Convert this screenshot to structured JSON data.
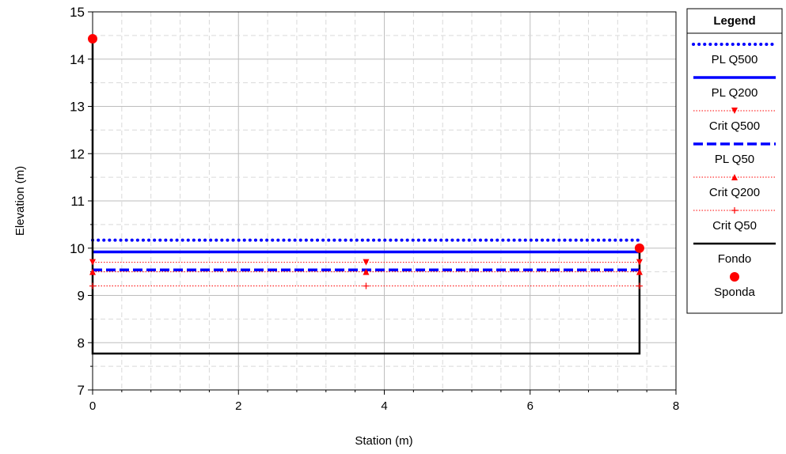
{
  "chart_data": {
    "type": "line",
    "xlabel": "Station (m)",
    "ylabel": "Elevation (m)",
    "xlim": [
      0,
      8
    ],
    "ylim": [
      7,
      15
    ],
    "x_ticks": [
      0,
      2,
      4,
      6,
      8
    ],
    "y_ticks": [
      7,
      8,
      9,
      10,
      11,
      12,
      13,
      14,
      15
    ],
    "grid": true,
    "legend_title": "Legend",
    "legend_position": "right",
    "series": [
      {
        "name": "PL Q500",
        "color": "#0000ff",
        "style": "dotted",
        "x": [
          0,
          7.5
        ],
        "y": [
          10.17,
          10.17
        ]
      },
      {
        "name": "PL Q200",
        "color": "#0000ff",
        "style": "solid",
        "x": [
          0,
          7.5
        ],
        "y": [
          9.92,
          9.92
        ]
      },
      {
        "name": "Crit Q500",
        "color": "#ff0000",
        "style": "dotted-thin",
        "marker": "triangle-down",
        "x": [
          0,
          3.75,
          7.5
        ],
        "y": [
          9.7,
          9.7,
          9.7
        ]
      },
      {
        "name": "PL Q50",
        "color": "#0000ff",
        "style": "dashed",
        "x": [
          0,
          7.5
        ],
        "y": [
          9.54,
          9.54
        ]
      },
      {
        "name": "Crit Q200",
        "color": "#ff0000",
        "style": "dotted-thin",
        "marker": "triangle-up",
        "x": [
          0,
          3.75,
          7.5
        ],
        "y": [
          9.5,
          9.5,
          9.5
        ]
      },
      {
        "name": "Crit Q50",
        "color": "#ff0000",
        "style": "dotted-thin",
        "marker": "plus",
        "x": [
          0,
          3.75,
          7.5
        ],
        "y": [
          9.2,
          9.2,
          9.2
        ]
      },
      {
        "name": "Fondo",
        "color": "#000000",
        "style": "solid",
        "x": [
          0,
          0,
          7.5,
          7.5
        ],
        "y": [
          14.43,
          7.77,
          7.77,
          10.0
        ]
      },
      {
        "name": "Sponda",
        "color": "#ff0000",
        "style": "none",
        "marker": "circle",
        "x": [
          0,
          7.5
        ],
        "y": [
          14.43,
          10.0
        ]
      }
    ]
  }
}
